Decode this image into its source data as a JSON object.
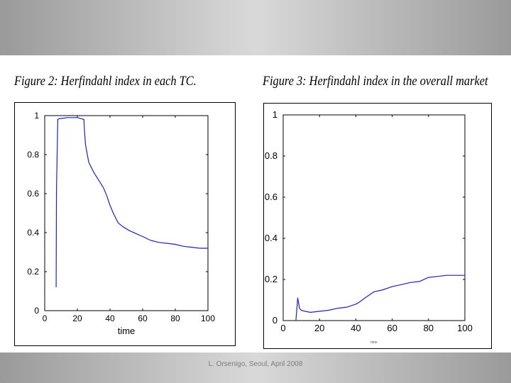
{
  "slide": {
    "footer": "L. Orsenigo, Seoul, April 2008"
  },
  "colors": {
    "line": "#2020c0",
    "axis": "#000000",
    "band": "#bcbcbc"
  },
  "chart_data": [
    {
      "type": "line",
      "title": "Figure 2: Herfindahl index in each TC.",
      "xlabel": "time",
      "ylabel": "",
      "xlim": [
        0,
        100
      ],
      "ylim": [
        0,
        1
      ],
      "xticks": [
        0,
        20,
        40,
        60,
        80,
        100
      ],
      "yticks": [
        0,
        0.2,
        0.4,
        0.6,
        0.8,
        1
      ],
      "yticklabels": [
        "0",
        "0.2",
        "0.4",
        "0.6",
        "0.8",
        "1"
      ],
      "grid": false,
      "series": [
        {
          "x": [
            7,
            7.2,
            8,
            9,
            10,
            14,
            18,
            20,
            22,
            24,
            24.3,
            25,
            27,
            30,
            33,
            36,
            38,
            40,
            42,
            45,
            48,
            52,
            56,
            60,
            65,
            70,
            75,
            80,
            85,
            90,
            95,
            100
          ],
          "y": [
            0.12,
            0.62,
            0.98,
            0.985,
            0.985,
            0.99,
            0.99,
            0.99,
            0.985,
            0.98,
            0.93,
            0.85,
            0.76,
            0.71,
            0.67,
            0.63,
            0.59,
            0.54,
            0.5,
            0.45,
            0.43,
            0.41,
            0.395,
            0.38,
            0.36,
            0.35,
            0.345,
            0.34,
            0.33,
            0.325,
            0.32,
            0.32
          ]
        }
      ]
    },
    {
      "type": "line",
      "title": "Figure 3: Herfindahl index in the overall market",
      "xlabel": "time",
      "ylabel": "",
      "xlim": [
        0,
        100
      ],
      "ylim": [
        0,
        1
      ],
      "xticks": [
        0,
        20,
        40,
        60,
        80,
        100
      ],
      "yticks": [
        0,
        0.2,
        0.4,
        0.6,
        0.8,
        1
      ],
      "yticklabels": [
        "0",
        "0.2",
        "0.4",
        "0.6",
        "0.8",
        "1"
      ],
      "grid": false,
      "series": [
        {
          "x": [
            7,
            8,
            9,
            10,
            12,
            15,
            20,
            25,
            30,
            35,
            40,
            42,
            45,
            50,
            55,
            60,
            65,
            70,
            75,
            80,
            85,
            90,
            95,
            100
          ],
          "y": [
            0.0,
            0.11,
            0.06,
            0.05,
            0.045,
            0.04,
            0.045,
            0.05,
            0.06,
            0.065,
            0.08,
            0.09,
            0.11,
            0.14,
            0.15,
            0.165,
            0.175,
            0.185,
            0.19,
            0.21,
            0.215,
            0.22,
            0.22,
            0.22
          ]
        }
      ]
    }
  ]
}
